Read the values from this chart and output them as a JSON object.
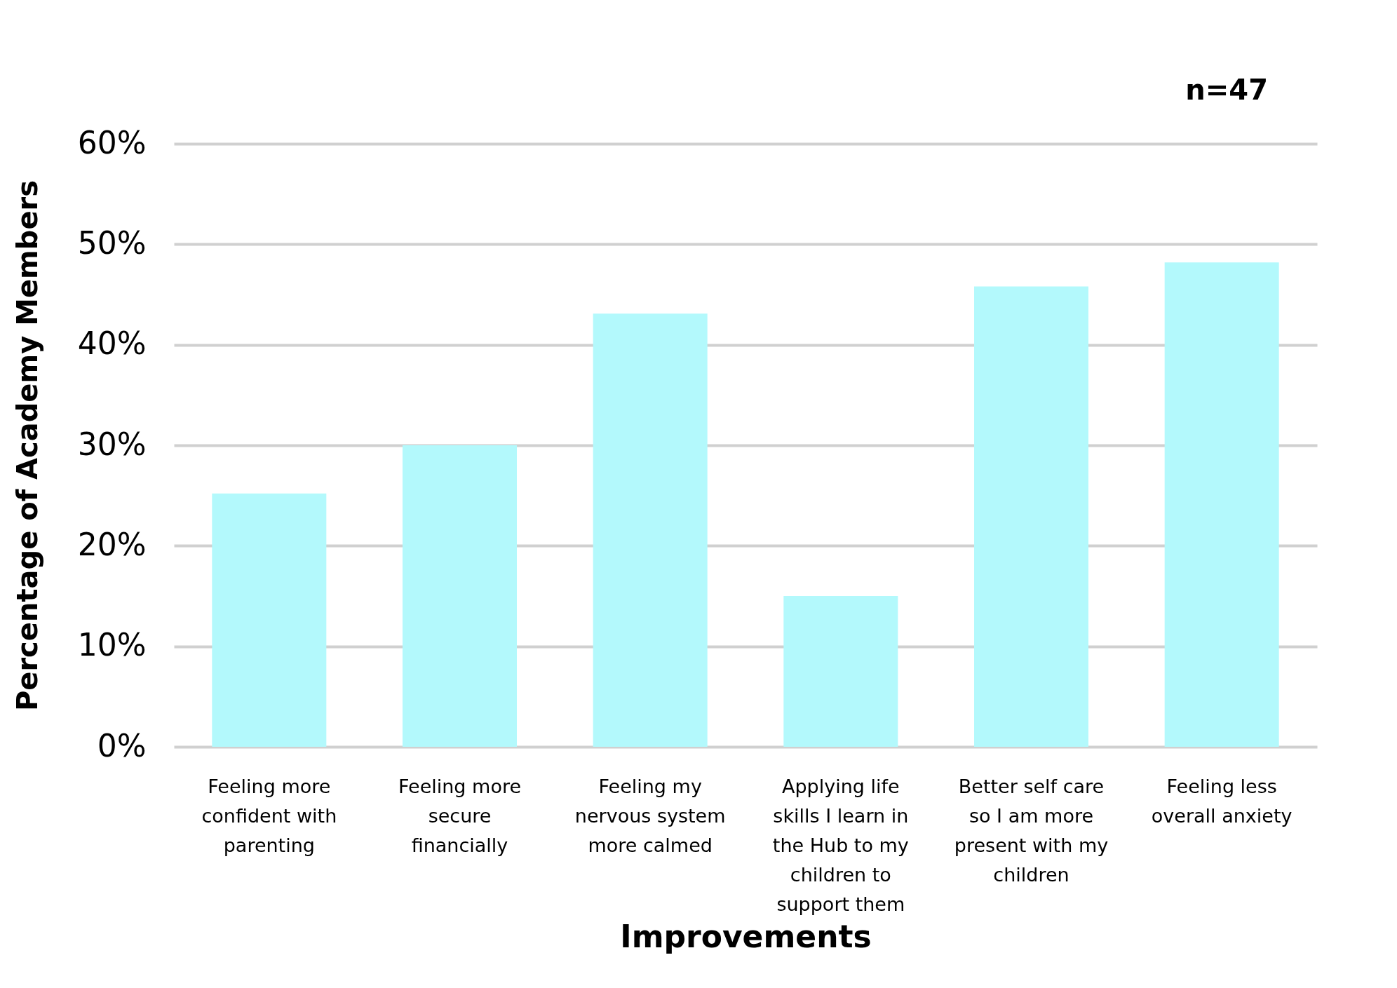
{
  "chart_data": {
    "type": "bar",
    "categories": [
      "Feeling more confident with parenting",
      "Feeling more secure financially",
      "Feeling my nervous system more calmed",
      "Applying life skills I learn in the Hub to my children to support them",
      "Better self care so I am more present with my children",
      "Feeling less overall anxiety"
    ],
    "values": [
      25.2,
      30.0,
      43.1,
      15.0,
      45.8,
      48.2
    ],
    "color": "#b3f9fc",
    "xlabel": "Improvements",
    "ylabel": "Percentage  of Academy Members",
    "ylim": [
      0,
      60
    ],
    "yticks": [
      {
        "value": 0,
        "label": "0%"
      },
      {
        "value": 10,
        "label": "10%"
      },
      {
        "value": 20,
        "label": "20%"
      },
      {
        "value": 30,
        "label": "30%"
      },
      {
        "value": 40,
        "label": "40%"
      },
      {
        "value": 50,
        "label": "50%"
      },
      {
        "value": 60,
        "label": "60%"
      }
    ],
    "grid": "y",
    "annotations": [
      "n=47"
    ]
  }
}
